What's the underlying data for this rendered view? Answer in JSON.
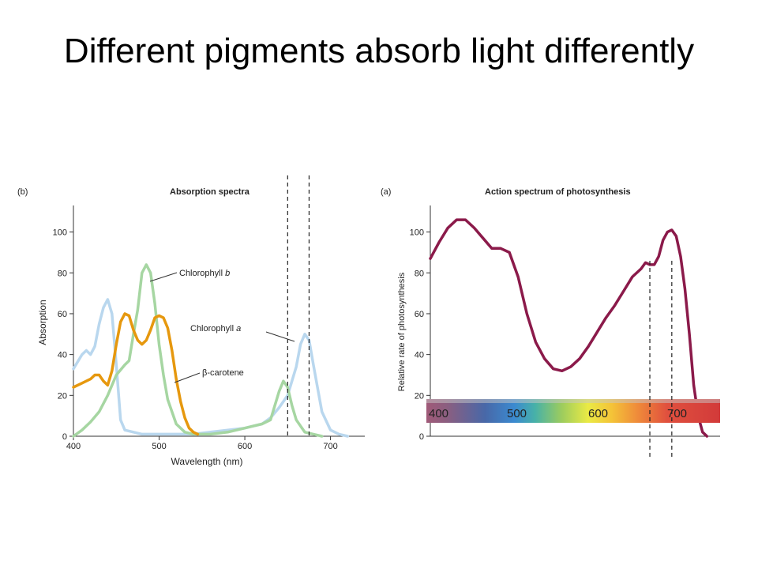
{
  "slide": {
    "title": "Different pigments absorb light differently"
  },
  "chart_data": [
    {
      "type": "line",
      "panel_label": "(b)",
      "title": "Absorption spectra",
      "xlabel": "Wavelength (nm)",
      "ylabel": "Absorption",
      "xlim": [
        400,
        740
      ],
      "ylim": [
        0,
        113
      ],
      "xticks": [
        400,
        500,
        600,
        700
      ],
      "yticks": [
        0,
        20,
        40,
        60,
        80,
        100
      ],
      "grid": false,
      "markers": [
        650,
        675
      ],
      "series": [
        {
          "name": "Chlorophyll a",
          "color": "#b9d7ee",
          "x": [
            400,
            410,
            415,
            420,
            425,
            430,
            435,
            440,
            445,
            450,
            455,
            460,
            470,
            480,
            500,
            520,
            540,
            560,
            580,
            600,
            610,
            620,
            630,
            640,
            650,
            660,
            665,
            670,
            675,
            680,
            690,
            700,
            710,
            720
          ],
          "y": [
            33,
            40,
            42,
            40,
            44,
            55,
            63,
            67,
            60,
            35,
            8,
            3,
            2,
            1,
            1,
            1,
            1,
            2,
            3,
            4,
            5,
            6,
            9,
            14,
            20,
            34,
            45,
            50,
            47,
            35,
            12,
            3,
            1,
            0
          ]
        },
        {
          "name": "Chlorophyll b",
          "color": "#a6d6a2",
          "x": [
            400,
            410,
            420,
            430,
            440,
            450,
            460,
            465,
            470,
            475,
            480,
            485,
            490,
            495,
            500,
            505,
            510,
            520,
            530,
            540,
            560,
            580,
            600,
            610,
            620,
            630,
            640,
            645,
            650,
            655,
            660,
            670,
            680,
            690
          ],
          "y": [
            0,
            3,
            7,
            12,
            20,
            30,
            35,
            37,
            50,
            62,
            80,
            84,
            80,
            65,
            45,
            30,
            18,
            6,
            2,
            1,
            1,
            2,
            4,
            5,
            6,
            8,
            22,
            27,
            24,
            15,
            8,
            2,
            1,
            0
          ]
        },
        {
          "name": "β-carotene",
          "color": "#e6980e",
          "x": [
            400,
            410,
            420,
            425,
            430,
            435,
            440,
            445,
            450,
            455,
            460,
            465,
            470,
            475,
            480,
            485,
            490,
            495,
            500,
            505,
            510,
            515,
            520,
            525,
            530,
            535,
            540,
            545
          ],
          "y": [
            24,
            26,
            28,
            30,
            30,
            27,
            25,
            32,
            45,
            56,
            60,
            59,
            52,
            47,
            45,
            47,
            52,
            58,
            59,
            58,
            53,
            42,
            28,
            17,
            9,
            4,
            2,
            1
          ]
        }
      ],
      "annotations": [
        "Chlorophyll b",
        "Chlorophyll a",
        "β-carotene"
      ]
    },
    {
      "type": "line",
      "panel_label": "(a)",
      "title": "Action spectrum of photosynthesis",
      "ylabel": "Relative rate of photosynthesis",
      "xlim": [
        400,
        730
      ],
      "ylim": [
        0,
        113
      ],
      "yticks": [
        0,
        20,
        40,
        60,
        80,
        100
      ],
      "grid": false,
      "markers": [
        650,
        675
      ],
      "spectrum_bar_labels": [
        "400",
        "500",
        "600",
        "700"
      ],
      "series": [
        {
          "name": "",
          "color": "#8b1a4a",
          "x": [
            400,
            410,
            420,
            430,
            440,
            450,
            460,
            470,
            480,
            490,
            500,
            510,
            520,
            530,
            540,
            550,
            560,
            570,
            580,
            590,
            600,
            610,
            620,
            630,
            640,
            645,
            650,
            655,
            660,
            665,
            670,
            675,
            680,
            685,
            690,
            695,
            700,
            705,
            710,
            715
          ],
          "y": [
            87,
            95,
            102,
            106,
            106,
            102,
            97,
            92,
            92,
            90,
            78,
            60,
            46,
            38,
            33,
            32,
            34,
            38,
            44,
            51,
            58,
            64,
            71,
            78,
            82,
            85,
            84,
            84,
            88,
            96,
            100,
            101,
            98,
            88,
            72,
            50,
            25,
            10,
            2,
            0
          ]
        }
      ]
    }
  ]
}
